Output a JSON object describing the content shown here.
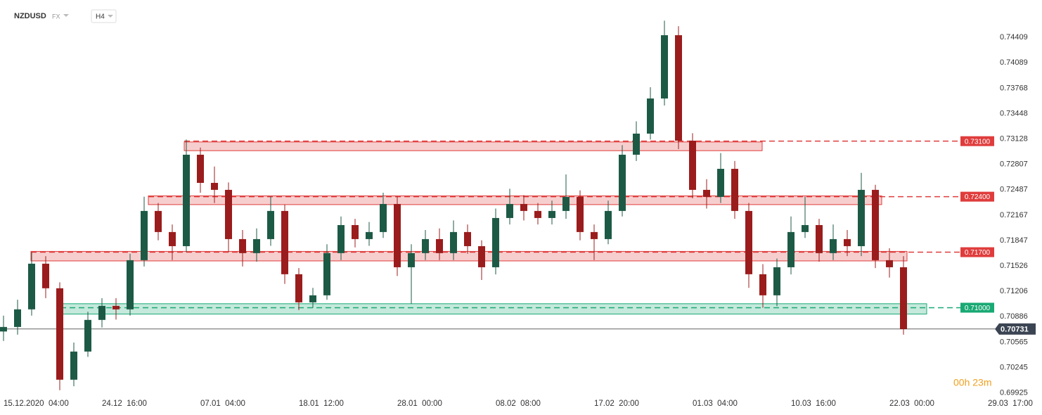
{
  "header": {
    "symbol": "NZDUSD",
    "market": "FX",
    "interval": "H4"
  },
  "timer": "00h 23m",
  "chart_data": {
    "type": "candlestick",
    "categories": [
      "15.12.2020  04:00",
      null,
      null,
      null,
      null,
      null,
      null,
      "24.12  16:00",
      null,
      null,
      null,
      null,
      null,
      null,
      "07.01  04:00",
      null,
      null,
      null,
      null,
      null,
      null,
      "18.01  12:00",
      null,
      null,
      null,
      null,
      null,
      null,
      "28.01  00:00",
      null,
      null,
      null,
      null,
      null,
      null,
      "08.02  08:00",
      null,
      null,
      null,
      null,
      null,
      null,
      "17.02  20:00",
      null,
      null,
      null,
      null,
      null,
      null,
      "01.03  04:00",
      null,
      null,
      null,
      null,
      null,
      null,
      "10.03  16:00",
      null,
      null,
      null,
      null,
      null,
      null,
      "22.03  00:00",
      null,
      null,
      null,
      null,
      null,
      null,
      "29.03  17:00"
    ],
    "open": [
      0.707,
      0.70757,
      0.70979,
      0.71555,
      0.71245,
      0.70092,
      0.70447,
      0.70846,
      0.71023,
      0.70979,
      0.71599,
      0.7222,
      0.71954,
      0.71776,
      0.72929,
      0.72574,
      0.72486,
      0.71865,
      0.71688,
      0.71865,
      0.7222,
      0.71422,
      0.71067,
      0.71156,
      0.71688,
      0.72042,
      0.71865,
      0.71954,
      0.72308,
      0.7151,
      0.71688,
      0.71865,
      0.71688,
      0.71954,
      0.71776,
      0.7151,
      0.72131,
      0.72308,
      0.7222,
      0.72131,
      0.7222,
      0.72397,
      0.71954,
      0.71865,
      0.7222,
      0.72929,
      0.73195,
      0.73638,
      0.74436,
      0.73106,
      0.72486,
      0.72397,
      0.72751,
      0.7222,
      0.71422,
      0.71156,
      0.7151,
      0.71954,
      0.72042,
      0.71688,
      0.71865,
      0.71776,
      0.72486,
      0.71599,
      0.7151,
      null,
      null,
      null,
      null,
      null,
      null
    ],
    "high": [
      0.709,
      0.711,
      0.717,
      0.7165,
      0.7132,
      0.7056,
      0.7095,
      0.7112,
      0.7112,
      0.7168,
      0.724,
      0.7232,
      0.7205,
      0.7312,
      0.7302,
      0.7278,
      0.7258,
      0.7198,
      0.72,
      0.724,
      0.723,
      0.715,
      0.7125,
      0.718,
      0.7215,
      0.7212,
      0.7208,
      0.7245,
      0.724,
      0.718,
      0.7198,
      0.72,
      0.721,
      0.7205,
      0.7185,
      0.7225,
      0.725,
      0.7242,
      0.7232,
      0.7235,
      0.7268,
      0.7248,
      0.7205,
      0.7235,
      0.7305,
      0.7335,
      0.7378,
      0.7462,
      0.7455,
      0.732,
      0.7262,
      0.7295,
      0.7285,
      0.7232,
      0.7155,
      0.7162,
      0.7215,
      0.724,
      0.7212,
      0.7205,
      0.7198,
      0.727,
      0.7255,
      0.7175,
      0.7165,
      null,
      null,
      null,
      null,
      null,
      null
    ],
    "low": [
      0.7058,
      0.7066,
      0.709,
      0.7112,
      0.6996,
      0.7001,
      0.7038,
      0.7075,
      0.7085,
      0.709,
      0.7152,
      0.7185,
      0.716,
      0.717,
      0.7245,
      0.7232,
      0.717,
      0.7152,
      0.7158,
      0.7178,
      0.713,
      0.7097,
      0.71,
      0.711,
      0.716,
      0.7176,
      0.7178,
      0.7188,
      0.714,
      0.7105,
      0.716,
      0.716,
      0.716,
      0.7168,
      0.7135,
      0.7142,
      0.7205,
      0.721,
      0.7205,
      0.7205,
      0.7212,
      0.7185,
      0.716,
      0.718,
      0.7215,
      0.7285,
      0.7312,
      0.7355,
      0.73,
      0.7238,
      0.7225,
      0.7232,
      0.7212,
      0.7125,
      0.71,
      0.7102,
      0.7142,
      0.7188,
      0.7158,
      0.716,
      0.7165,
      0.7165,
      0.715,
      0.7138,
      0.7066,
      null,
      null,
      null,
      null,
      null,
      null
    ],
    "close": [
      0.70757,
      0.70979,
      0.71555,
      0.71245,
      0.70092,
      0.70447,
      0.70846,
      0.71023,
      0.70979,
      0.71599,
      0.7222,
      0.71954,
      0.71776,
      0.72929,
      0.72574,
      0.72486,
      0.71865,
      0.71688,
      0.71865,
      0.7222,
      0.71422,
      0.71067,
      0.71156,
      0.71688,
      0.72042,
      0.71865,
      0.71954,
      0.72308,
      0.7151,
      0.71688,
      0.71865,
      0.71688,
      0.71954,
      0.71776,
      0.7151,
      0.72131,
      0.72308,
      0.7222,
      0.72131,
      0.7222,
      0.72397,
      0.71954,
      0.71865,
      0.7222,
      0.72929,
      0.73195,
      0.73638,
      0.74436,
      0.73106,
      0.72486,
      0.72397,
      0.72751,
      0.7222,
      0.71422,
      0.71156,
      0.7151,
      0.71954,
      0.72042,
      0.71688,
      0.71865,
      0.71776,
      0.72486,
      0.71599,
      0.7151,
      0.70731,
      null,
      null,
      null,
      null,
      null,
      null
    ],
    "up_color": "#1d5a46",
    "down_color": "#9b1c1c",
    "ylim": [
      0.6978,
      0.7488
    ],
    "yticks": [
      0.74409,
      0.74089,
      0.73768,
      0.73448,
      0.73128,
      0.72807,
      0.72487,
      0.72167,
      0.71847,
      0.71526,
      0.71206,
      0.70886,
      0.70565,
      0.70245,
      0.69925
    ],
    "levels": [
      {
        "value": 0.731,
        "label": "0.73100",
        "color": "#e03c3c",
        "low": 0.7298,
        "high": 0.7309
      },
      {
        "value": 0.724,
        "label": "0.72400",
        "color": "#e03c3c",
        "low": 0.723,
        "high": 0.7241
      },
      {
        "value": 0.717,
        "label": "0.71700",
        "color": "#e03c3c",
        "low": 0.7159,
        "high": 0.7171
      },
      {
        "value": 0.71,
        "label": "0.71000",
        "color": "#19a974",
        "low": 0.7092,
        "high": 0.7105
      }
    ],
    "current_price": 0.70731
  }
}
